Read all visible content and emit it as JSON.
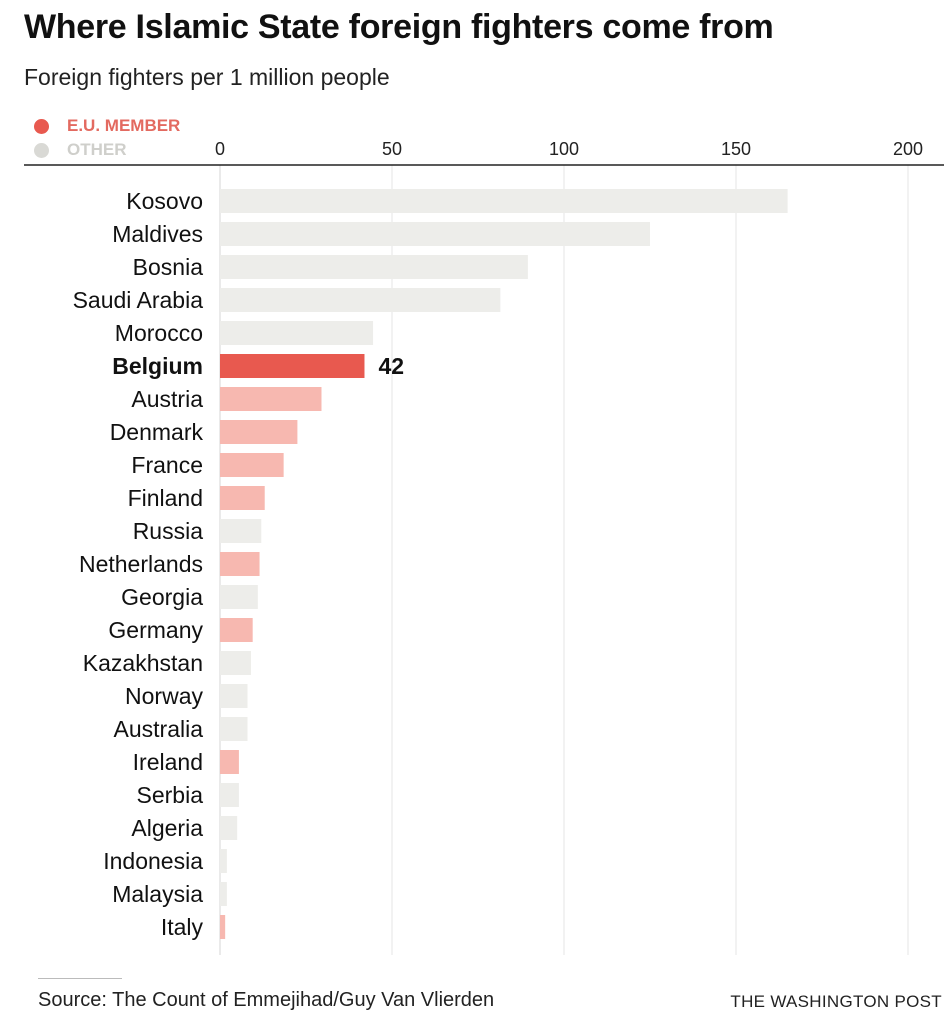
{
  "header": {
    "title": "Where Islamic State foreign fighters come from",
    "subtitle": "Foreign fighters per 1 million people"
  },
  "legend": {
    "eu_label": "E.U. MEMBER",
    "other_label": "OTHER"
  },
  "colors": {
    "eu": "#f7b8b0",
    "eu_highlight": "#e8594f",
    "other": "#ededea",
    "grid": "#e4e4e4",
    "axis": "#222222"
  },
  "chart_data": {
    "type": "bar",
    "orientation": "horizontal",
    "xlim": [
      0,
      200
    ],
    "ticks": [
      0,
      50,
      100,
      150,
      200
    ],
    "grid": true,
    "legend_position": "top-left",
    "categories": [
      "Kosovo",
      "Maldives",
      "Bosnia",
      "Saudi Arabia",
      "Morocco",
      "Belgium",
      "Austria",
      "Denmark",
      "France",
      "Finland",
      "Russia",
      "Netherlands",
      "Georgia",
      "Germany",
      "Kazakhstan",
      "Norway",
      "Australia",
      "Ireland",
      "Serbia",
      "Algeria",
      "Indonesia",
      "Malaysia",
      "Italy"
    ],
    "values": [
      165,
      125,
      89.5,
      81.5,
      44.5,
      42,
      29.5,
      22.5,
      18.5,
      13,
      12,
      11.5,
      11,
      9.5,
      9,
      8,
      8,
      5.5,
      5.5,
      5,
      2,
      2,
      1.5
    ],
    "groups": [
      "other",
      "other",
      "other",
      "other",
      "other",
      "eu",
      "eu",
      "eu",
      "eu",
      "eu",
      "other",
      "eu",
      "other",
      "eu",
      "other",
      "other",
      "other",
      "eu",
      "other",
      "other",
      "other",
      "other",
      "eu"
    ],
    "highlight": "Belgium",
    "highlight_label": "42"
  },
  "footer": {
    "source": "Source: The Count of Emmejihad/Guy Van Vlierden",
    "credit": "THE WASHINGTON POST"
  }
}
